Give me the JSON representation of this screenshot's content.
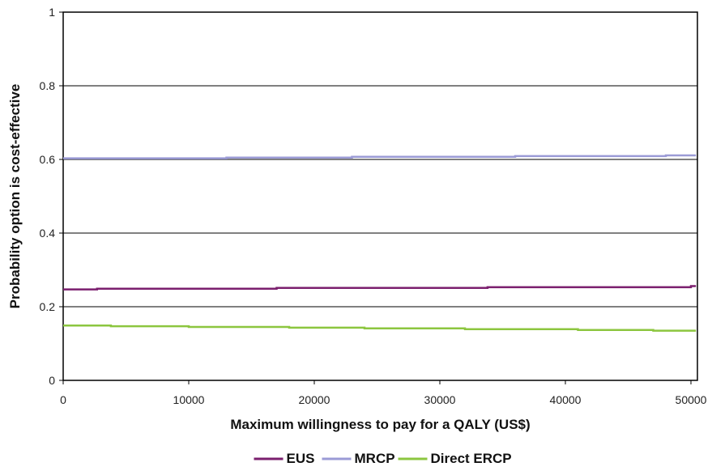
{
  "chart_data": {
    "type": "line",
    "xlabel": "Maximum willingness to pay for a QALY (US$)",
    "ylabel": "Probability option is cost-effective",
    "xlim": [
      0,
      50000
    ],
    "ylim": [
      0,
      1
    ],
    "x_ticks": [
      "0",
      "10000",
      "20000",
      "30000",
      "40000",
      "50000"
    ],
    "y_ticks": [
      "0",
      "0.2",
      "0.4",
      "0.6",
      "0.8",
      "1"
    ],
    "grid": "horizontal",
    "legend_position": "bottom",
    "series": [
      {
        "name": "EUS",
        "color": "#7b1f6e",
        "x": [
          0,
          2700,
          2700,
          17000,
          17000,
          33800,
          33800,
          50000,
          50000,
          50400
        ],
        "y": [
          0.247,
          0.247,
          0.249,
          0.249,
          0.251,
          0.251,
          0.253,
          0.253,
          0.256,
          0.256
        ]
      },
      {
        "name": "MRCP",
        "color": "#9b9bd6",
        "x": [
          0,
          13000,
          13000,
          23000,
          23000,
          36000,
          36000,
          48000,
          48000,
          50400
        ],
        "y": [
          0.603,
          0.603,
          0.605,
          0.605,
          0.607,
          0.607,
          0.609,
          0.609,
          0.611,
          0.611
        ]
      },
      {
        "name": "Direct ERCP",
        "color": "#8cc63f",
        "x": [
          0,
          3800,
          3800,
          10000,
          10000,
          18000,
          18000,
          24000,
          24000,
          32000,
          32000,
          41000,
          41000,
          47000,
          47000,
          50400
        ],
        "y": [
          0.149,
          0.149,
          0.147,
          0.147,
          0.145,
          0.145,
          0.143,
          0.143,
          0.141,
          0.141,
          0.139,
          0.139,
          0.137,
          0.137,
          0.135,
          0.135
        ]
      }
    ]
  }
}
